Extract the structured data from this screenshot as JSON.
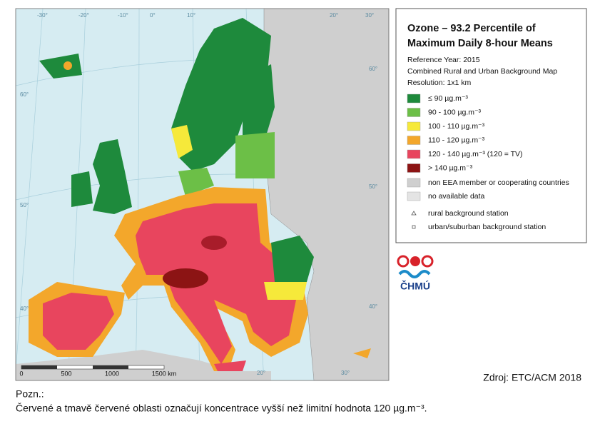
{
  "map": {
    "graticule_labels": [
      "-30°",
      "-20°",
      "-10°",
      "0°",
      "10°",
      "20°",
      "30°",
      "60°",
      "50°",
      "40°",
      "60°",
      "50°",
      "40°",
      "20°",
      "30°"
    ],
    "scale_bar": [
      "0",
      "500",
      "1000",
      "1500 km"
    ]
  },
  "legend": {
    "title_lines": [
      "Ozone – 93.2 Percentile of",
      "Maximum Daily 8-hour Means"
    ],
    "info_lines": [
      "Reference Year: 2015",
      "Combined Rural and Urban Background Map",
      "Resolution: 1x1 km"
    ],
    "items": [
      {
        "label": "≤ 90 µg.m⁻³",
        "color": "#1e8a3c",
        "symbol": "box"
      },
      {
        "label": "90 - 100 µg.m⁻³",
        "color": "#6cbf47",
        "symbol": "box"
      },
      {
        "label": "100 - 110 µg.m⁻³",
        "color": "#f6e93a",
        "symbol": "box"
      },
      {
        "label": "110 - 120 µg.m⁻³",
        "color": "#f3a72b",
        "symbol": "box"
      },
      {
        "label": "120 - 140 µg.m⁻³  (120 = TV)",
        "color": "#e8455e",
        "symbol": "box"
      },
      {
        "label": "> 140 µg.m⁻³",
        "color": "#8c1414",
        "symbol": "box"
      },
      {
        "label": "non EEA member or cooperating countries",
        "color": "#cfcfcf",
        "symbol": "box"
      },
      {
        "label": "no available data",
        "color": "#e4e4e4",
        "symbol": "box"
      },
      {
        "label": "rural background station",
        "color": "#555555",
        "symbol": "triangle"
      },
      {
        "label": "urban/suburban background station",
        "color": "#555555",
        "symbol": "square"
      }
    ]
  },
  "logo": {
    "text": "ČHMÚ"
  },
  "source": "Zdroj: ETC/ACM 2018",
  "note": {
    "heading": "Pozn.:",
    "text": "Červené a tmavě červené oblasti označují koncentrace vyšší než limitní hodnota 120 µg.m⁻³."
  }
}
